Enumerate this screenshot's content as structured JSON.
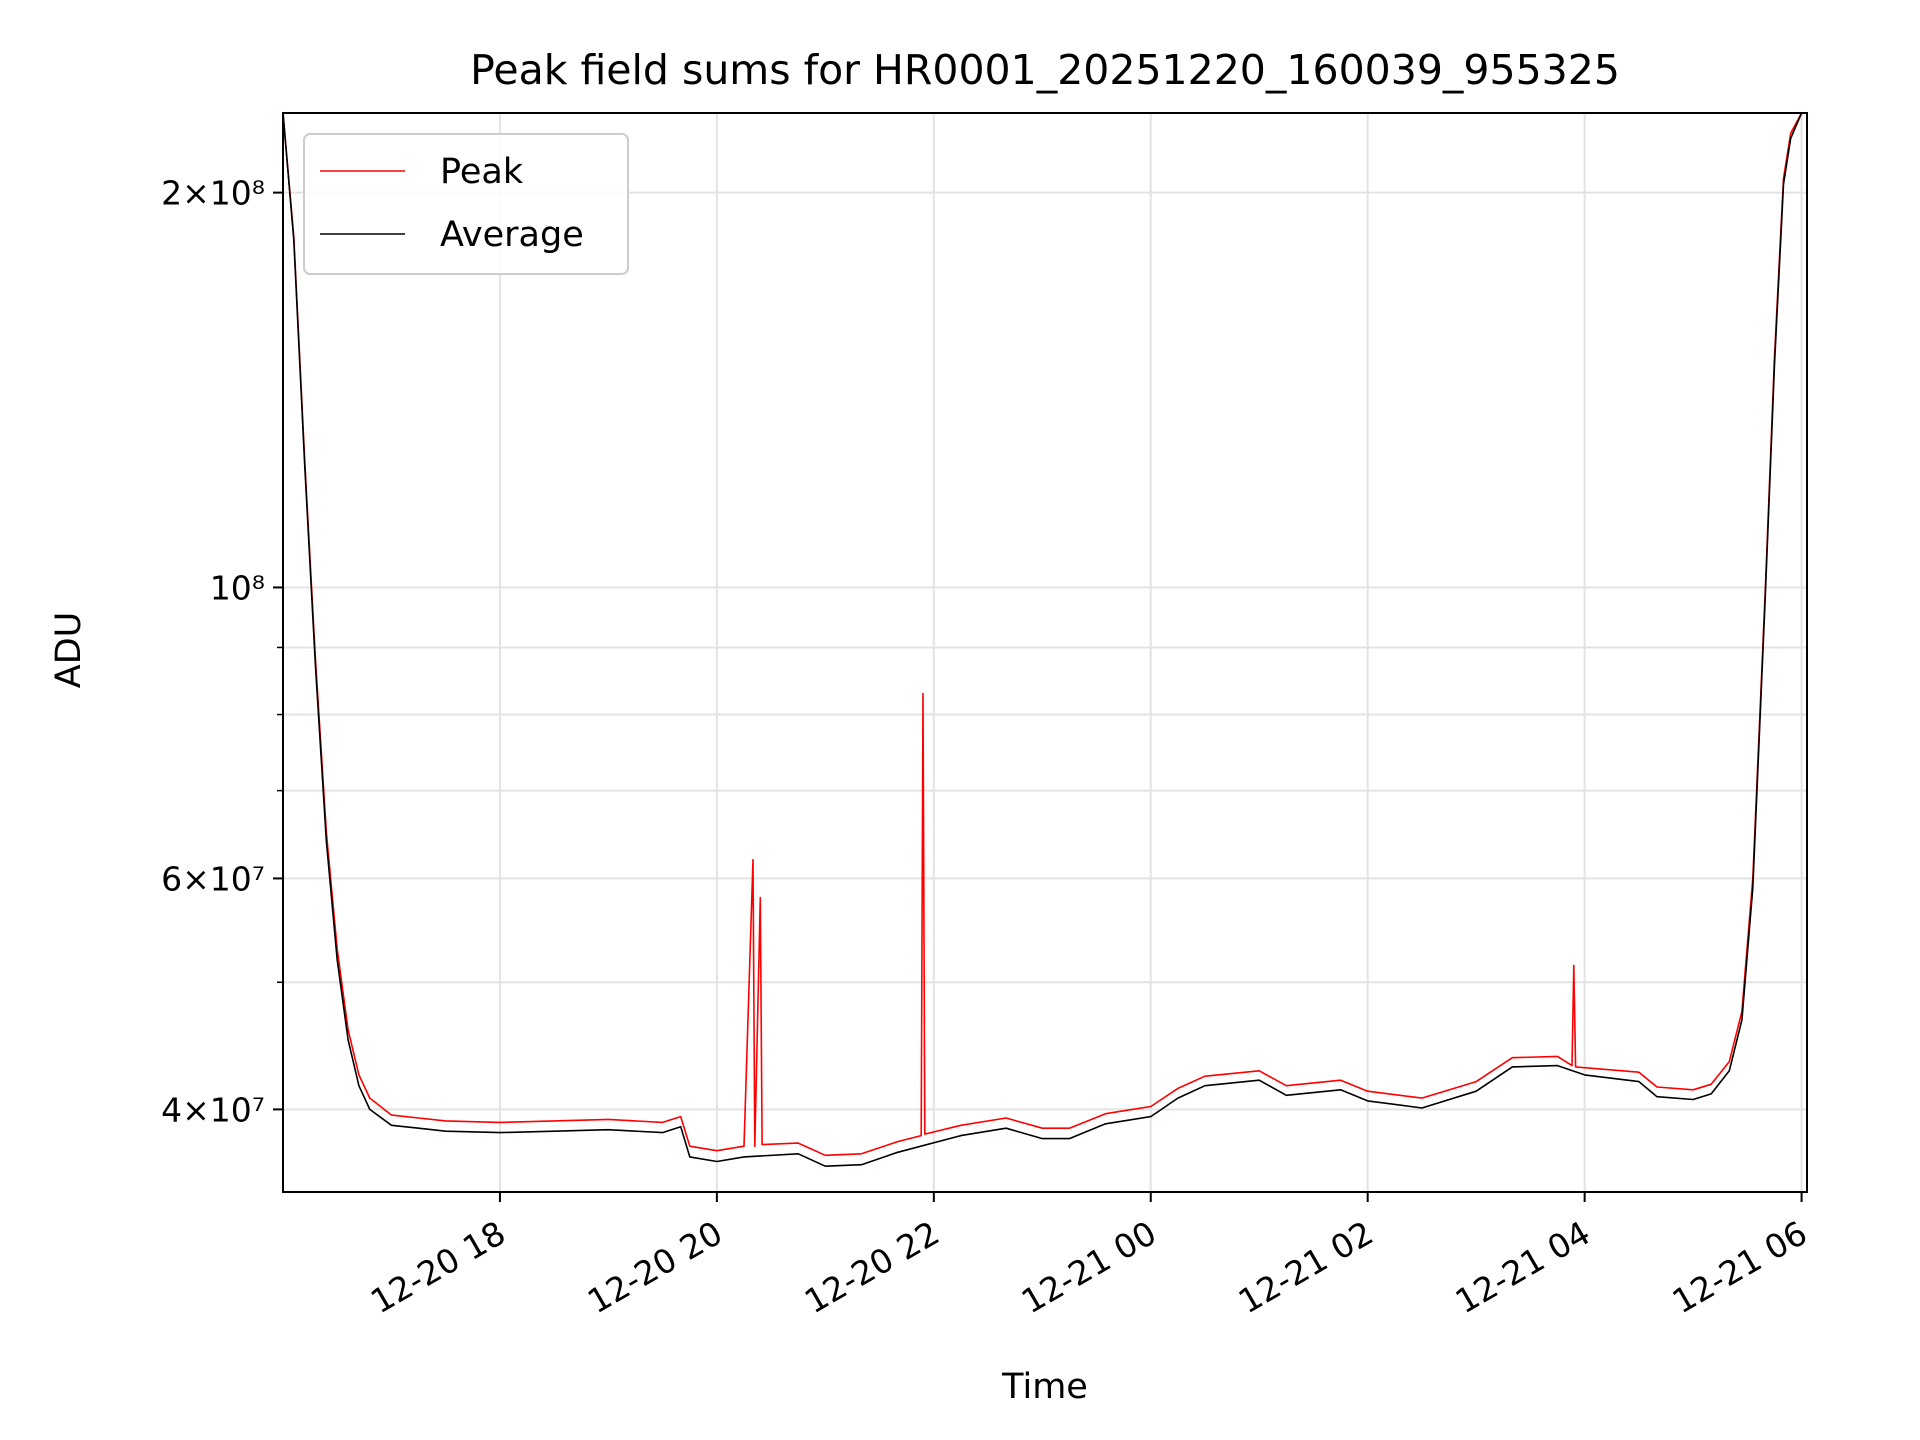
{
  "chart_data": {
    "type": "line",
    "title": "Peak field sums for HR0001_20251220_160039_955325",
    "xlabel": "Time",
    "ylabel": "ADU",
    "y_scale": "log",
    "ylim": [
      34600000,
      230000000
    ],
    "xlim": [
      "2025-12-20 16:00",
      "2025-12-21 06:03"
    ],
    "grid": true,
    "legend": "top-left",
    "x_ticks": [
      {
        "t": "2025-12-20 18:00",
        "label": "12-20 18"
      },
      {
        "t": "2025-12-20 20:00",
        "label": "12-20 20"
      },
      {
        "t": "2025-12-20 22:00",
        "label": "12-20 22"
      },
      {
        "t": "2025-12-21 00:00",
        "label": "12-21 00"
      },
      {
        "t": "2025-12-21 02:00",
        "label": "12-21 02"
      },
      {
        "t": "2025-12-21 04:00",
        "label": "12-21 04"
      },
      {
        "t": "2025-12-21 06:00",
        "label": "12-21 06"
      }
    ],
    "y_ticks_major": [
      {
        "v": 40000000,
        "mant": "4",
        "exp": "7"
      },
      {
        "v": 60000000,
        "mant": "6",
        "exp": "7"
      },
      {
        "v": 100000000,
        "mant": "",
        "exp": "8"
      },
      {
        "v": 200000000,
        "mant": "2",
        "exp": "8"
      }
    ],
    "y_ticks_minor": [
      50000000,
      70000000,
      80000000,
      90000000
    ],
    "series": [
      {
        "name": "Peak",
        "color": "#ff0000",
        "points": [
          [
            "2025-12-20 16:00",
            230000000
          ],
          [
            "2025-12-20 16:06",
            185000000
          ],
          [
            "2025-12-20 16:12",
            125000000
          ],
          [
            "2025-12-20 16:18",
            88000000
          ],
          [
            "2025-12-20 16:24",
            65000000
          ],
          [
            "2025-12-20 16:30",
            53000000
          ],
          [
            "2025-12-20 16:36",
            46000000
          ],
          [
            "2025-12-20 16:42",
            42500000
          ],
          [
            "2025-12-20 16:48",
            40800000
          ],
          [
            "2025-12-20 17:00",
            39600000
          ],
          [
            "2025-12-20 17:15",
            39400000
          ],
          [
            "2025-12-20 17:30",
            39200000
          ],
          [
            "2025-12-20 18:00",
            39100000
          ],
          [
            "2025-12-20 18:30",
            39200000
          ],
          [
            "2025-12-20 19:00",
            39300000
          ],
          [
            "2025-12-20 19:30",
            39100000
          ],
          [
            "2025-12-20 19:40",
            39500000
          ],
          [
            "2025-12-20 19:45",
            37500000
          ],
          [
            "2025-12-20 20:00",
            37200000
          ],
          [
            "2025-12-20 20:15",
            37500000
          ],
          [
            "2025-12-20 20:20",
            62000000
          ],
          [
            "2025-12-20 20:21",
            37500000
          ],
          [
            "2025-12-20 20:24",
            58000000
          ],
          [
            "2025-12-20 20:25",
            37600000
          ],
          [
            "2025-12-20 20:45",
            37700000
          ],
          [
            "2025-12-20 21:00",
            36900000
          ],
          [
            "2025-12-20 21:20",
            37000000
          ],
          [
            "2025-12-20 21:40",
            37800000
          ],
          [
            "2025-12-20 21:53",
            38200000
          ],
          [
            "2025-12-20 21:54",
            83000000
          ],
          [
            "2025-12-20 21:55",
            38300000
          ],
          [
            "2025-12-20 22:15",
            38900000
          ],
          [
            "2025-12-20 22:40",
            39400000
          ],
          [
            "2025-12-20 23:00",
            38700000
          ],
          [
            "2025-12-20 23:15",
            38700000
          ],
          [
            "2025-12-20 23:35",
            39700000
          ],
          [
            "2025-12-21 00:00",
            40200000
          ],
          [
            "2025-12-21 00:15",
            41500000
          ],
          [
            "2025-12-21 00:30",
            42400000
          ],
          [
            "2025-12-21 01:00",
            42800000
          ],
          [
            "2025-12-21 01:15",
            41700000
          ],
          [
            "2025-12-21 01:45",
            42100000
          ],
          [
            "2025-12-21 02:00",
            41300000
          ],
          [
            "2025-12-21 02:30",
            40800000
          ],
          [
            "2025-12-21 03:00",
            42000000
          ],
          [
            "2025-12-21 03:20",
            43800000
          ],
          [
            "2025-12-21 03:45",
            43900000
          ],
          [
            "2025-12-21 03:53",
            43200000
          ],
          [
            "2025-12-21 03:54",
            51500000
          ],
          [
            "2025-12-21 03:55",
            43100000
          ],
          [
            "2025-12-21 04:30",
            42700000
          ],
          [
            "2025-12-21 04:40",
            41600000
          ],
          [
            "2025-12-21 05:00",
            41400000
          ],
          [
            "2025-12-21 05:10",
            41800000
          ],
          [
            "2025-12-21 05:20",
            43500000
          ],
          [
            "2025-12-21 05:27",
            47500000
          ],
          [
            "2025-12-21 05:33",
            60000000
          ],
          [
            "2025-12-21 05:40",
            100000000
          ],
          [
            "2025-12-21 05:45",
            150000000
          ],
          [
            "2025-12-21 05:50",
            205000000
          ],
          [
            "2025-12-21 05:54",
            222000000
          ],
          [
            "2025-12-21 06:00",
            230000000
          ]
        ]
      },
      {
        "name": "Average",
        "color": "#000000",
        "points": [
          [
            "2025-12-20 16:00",
            230000000
          ],
          [
            "2025-12-20 16:06",
            184000000
          ],
          [
            "2025-12-20 16:12",
            124000000
          ],
          [
            "2025-12-20 16:18",
            87000000
          ],
          [
            "2025-12-20 16:24",
            64000000
          ],
          [
            "2025-12-20 16:30",
            52000000
          ],
          [
            "2025-12-20 16:36",
            45200000
          ],
          [
            "2025-12-20 16:42",
            41700000
          ],
          [
            "2025-12-20 16:48",
            40000000
          ],
          [
            "2025-12-20 17:00",
            38900000
          ],
          [
            "2025-12-20 17:15",
            38700000
          ],
          [
            "2025-12-20 17:30",
            38500000
          ],
          [
            "2025-12-20 18:00",
            38400000
          ],
          [
            "2025-12-20 18:30",
            38500000
          ],
          [
            "2025-12-20 19:00",
            38600000
          ],
          [
            "2025-12-20 19:30",
            38400000
          ],
          [
            "2025-12-20 19:40",
            38800000
          ],
          [
            "2025-12-20 19:45",
            36800000
          ],
          [
            "2025-12-20 20:00",
            36500000
          ],
          [
            "2025-12-20 20:15",
            36800000
          ],
          [
            "2025-12-20 20:45",
            37000000
          ],
          [
            "2025-12-20 21:00",
            36200000
          ],
          [
            "2025-12-20 21:20",
            36300000
          ],
          [
            "2025-12-20 21:40",
            37100000
          ],
          [
            "2025-12-20 22:15",
            38200000
          ],
          [
            "2025-12-20 22:40",
            38700000
          ],
          [
            "2025-12-20 23:00",
            38000000
          ],
          [
            "2025-12-20 23:15",
            38000000
          ],
          [
            "2025-12-20 23:35",
            39000000
          ],
          [
            "2025-12-21 00:00",
            39500000
          ],
          [
            "2025-12-21 00:15",
            40800000
          ],
          [
            "2025-12-21 00:30",
            41700000
          ],
          [
            "2025-12-21 01:00",
            42100000
          ],
          [
            "2025-12-21 01:15",
            41000000
          ],
          [
            "2025-12-21 01:45",
            41400000
          ],
          [
            "2025-12-21 02:00",
            40600000
          ],
          [
            "2025-12-21 02:30",
            40100000
          ],
          [
            "2025-12-21 03:00",
            41300000
          ],
          [
            "2025-12-21 03:20",
            43100000
          ],
          [
            "2025-12-21 03:45",
            43200000
          ],
          [
            "2025-12-21 04:00",
            42500000
          ],
          [
            "2025-12-21 04:30",
            42000000
          ],
          [
            "2025-12-21 04:40",
            40900000
          ],
          [
            "2025-12-21 05:00",
            40700000
          ],
          [
            "2025-12-21 05:10",
            41100000
          ],
          [
            "2025-12-21 05:20",
            42800000
          ],
          [
            "2025-12-21 05:27",
            46800000
          ],
          [
            "2025-12-21 05:33",
            59000000
          ],
          [
            "2025-12-21 05:40",
            99000000
          ],
          [
            "2025-12-21 05:45",
            148000000
          ],
          [
            "2025-12-21 05:50",
            203000000
          ],
          [
            "2025-12-21 05:54",
            220000000
          ],
          [
            "2025-12-21 06:00",
            230000000
          ]
        ]
      }
    ]
  }
}
